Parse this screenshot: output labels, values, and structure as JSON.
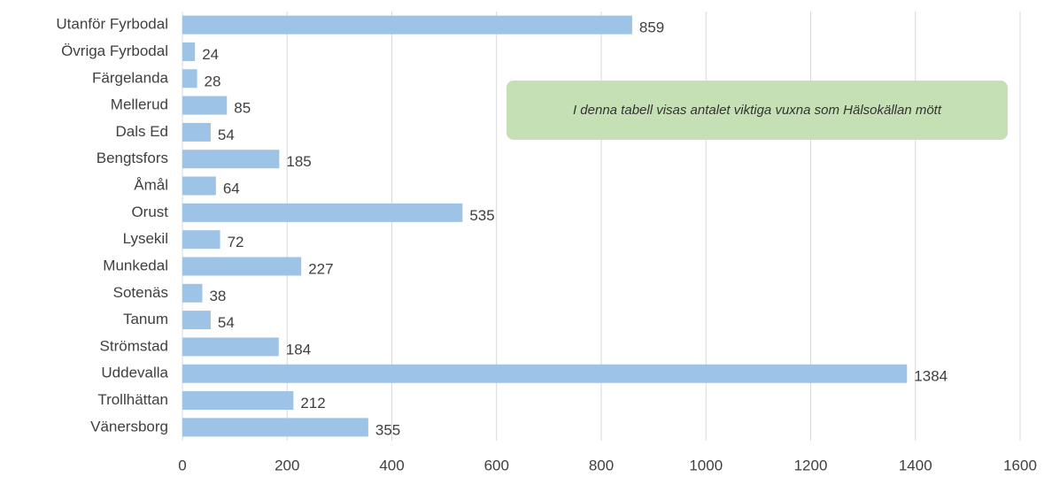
{
  "chart_data": {
    "type": "barh",
    "categories": [
      "Utanför Fyrbodal",
      "Övriga Fyrbodal",
      "Färgelanda",
      "Mellerud",
      "Dals Ed",
      "Bengtsfors",
      "Åmål",
      "Orust",
      "Lysekil",
      "Munkedal",
      "Sotenäs",
      "Tanum",
      "Strömstad",
      "Uddevalla",
      "Trollhättan",
      "Vänersborg"
    ],
    "values": [
      859,
      24,
      28,
      85,
      54,
      185,
      64,
      535,
      72,
      227,
      38,
      54,
      184,
      1384,
      212,
      355
    ],
    "color": "#9dc3e6",
    "xlim": [
      0,
      1600
    ],
    "xticks": [
      0,
      200,
      400,
      600,
      800,
      1000,
      1200,
      1400,
      1600
    ],
    "grid": true,
    "annotation": "I denna tabell visas antalet viktiga vuxna som Hälsokällan mött"
  }
}
